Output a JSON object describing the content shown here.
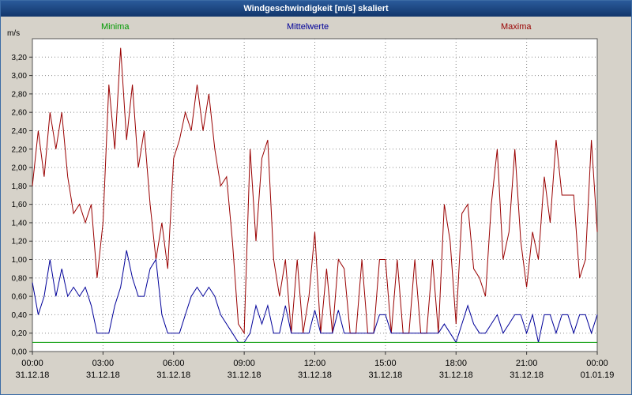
{
  "window": {
    "title": "Windgeschwindigkeit [m/s] skaliert"
  },
  "colors": {
    "title_bar": "#12366b",
    "background": "#d6d2c9",
    "frame_border": "#3b6ba5",
    "grid": "#8a8a8a",
    "minima": "#009900",
    "mittelwerte": "#000099",
    "maxima": "#990000"
  },
  "chart_data": {
    "type": "line",
    "title": "Windgeschwindigkeit [m/s] skaliert",
    "xlabel": "",
    "ylabel": "m/s",
    "ylim": [
      0,
      3.4
    ],
    "y_tick_step": 0.2,
    "y_ticks": [
      "0,00",
      "0,20",
      "0,40",
      "0,60",
      "0,80",
      "1,00",
      "1,20",
      "1,40",
      "1,60",
      "1,80",
      "2,00",
      "2,20",
      "2,40",
      "2,60",
      "2,80",
      "3,00",
      "3,20"
    ],
    "grid": "dotted",
    "legend_position": "top",
    "x_interval_minutes": 15,
    "x_ticks": [
      {
        "time": "00:00",
        "date": "31.12.18"
      },
      {
        "time": "03:00",
        "date": "31.12.18"
      },
      {
        "time": "06:00",
        "date": "31.12.18"
      },
      {
        "time": "09:00",
        "date": "31.12.18"
      },
      {
        "time": "12:00",
        "date": "31.12.18"
      },
      {
        "time": "15:00",
        "date": "31.12.18"
      },
      {
        "time": "18:00",
        "date": "31.12.18"
      },
      {
        "time": "21:00",
        "date": "31.12.18"
      },
      {
        "time": "00:00",
        "date": "01.01.19"
      }
    ],
    "series": [
      {
        "name": "Maxima",
        "color": "#990000",
        "values": [
          1.8,
          2.4,
          1.9,
          2.6,
          2.2,
          2.6,
          1.9,
          1.5,
          1.6,
          1.4,
          1.6,
          0.8,
          1.4,
          2.9,
          2.2,
          3.3,
          2.3,
          2.9,
          2.0,
          2.4,
          1.6,
          1.0,
          1.4,
          0.9,
          2.1,
          2.3,
          2.6,
          2.4,
          2.9,
          2.4,
          2.8,
          2.2,
          1.8,
          1.9,
          1.2,
          0.3,
          0.2,
          2.2,
          1.2,
          2.1,
          2.3,
          1.0,
          0.6,
          1.0,
          0.2,
          1.0,
          0.2,
          0.6,
          1.3,
          0.2,
          0.9,
          0.2,
          1.0,
          0.9,
          0.2,
          0.2,
          1.0,
          0.2,
          0.2,
          1.0,
          1.0,
          0.2,
          1.0,
          0.2,
          0.2,
          1.0,
          0.2,
          0.2,
          1.0,
          0.2,
          1.6,
          1.2,
          0.3,
          1.5,
          1.6,
          0.9,
          0.8,
          0.6,
          1.6,
          2.2,
          1.0,
          1.3,
          2.2,
          1.2,
          0.7,
          1.3,
          1.0,
          1.9,
          1.4,
          2.3,
          1.7,
          1.7,
          1.7,
          0.8,
          1.0,
          2.3,
          1.3
        ]
      },
      {
        "name": "Mittelwerte",
        "color": "#000099",
        "values": [
          0.75,
          0.4,
          0.6,
          1.0,
          0.6,
          0.9,
          0.6,
          0.7,
          0.6,
          0.7,
          0.5,
          0.2,
          0.2,
          0.2,
          0.5,
          0.7,
          1.1,
          0.8,
          0.6,
          0.6,
          0.9,
          1.0,
          0.4,
          0.2,
          0.2,
          0.2,
          0.4,
          0.6,
          0.7,
          0.6,
          0.7,
          0.6,
          0.4,
          0.3,
          0.2,
          0.1,
          0.1,
          0.2,
          0.5,
          0.3,
          0.5,
          0.2,
          0.2,
          0.5,
          0.2,
          0.2,
          0.2,
          0.2,
          0.45,
          0.2,
          0.2,
          0.2,
          0.45,
          0.2,
          0.2,
          0.2,
          0.2,
          0.2,
          0.2,
          0.4,
          0.4,
          0.2,
          0.2,
          0.2,
          0.2,
          0.2,
          0.2,
          0.2,
          0.2,
          0.2,
          0.3,
          0.2,
          0.1,
          0.3,
          0.5,
          0.3,
          0.2,
          0.2,
          0.3,
          0.4,
          0.2,
          0.3,
          0.4,
          0.4,
          0.2,
          0.4,
          0.1,
          0.4,
          0.4,
          0.2,
          0.4,
          0.4,
          0.2,
          0.4,
          0.4,
          0.2,
          0.4
        ]
      },
      {
        "name": "Minima",
        "color": "#009900",
        "values": [
          0.1,
          0.1,
          0.1,
          0.1,
          0.1,
          0.1,
          0.1,
          0.1,
          0.1,
          0.1,
          0.1,
          0.1,
          0.1,
          0.1,
          0.1,
          0.1,
          0.1,
          0.1,
          0.1,
          0.1,
          0.1,
          0.1,
          0.1,
          0.1,
          0.1,
          0.1,
          0.1,
          0.1,
          0.1,
          0.1,
          0.1,
          0.1,
          0.1,
          0.1,
          0.1,
          0.1,
          0.1,
          0.1,
          0.1,
          0.1,
          0.1,
          0.1,
          0.1,
          0.1,
          0.1,
          0.1,
          0.1,
          0.1,
          0.1,
          0.1,
          0.1,
          0.1,
          0.1,
          0.1,
          0.1,
          0.1,
          0.1,
          0.1,
          0.1,
          0.1,
          0.1,
          0.1,
          0.1,
          0.1,
          0.1,
          0.1,
          0.1,
          0.1,
          0.1,
          0.1,
          0.1,
          0.1,
          0.1,
          0.1,
          0.1,
          0.1,
          0.1,
          0.1,
          0.1,
          0.1,
          0.1,
          0.1,
          0.1,
          0.1,
          0.1,
          0.1,
          0.1,
          0.1,
          0.1,
          0.1,
          0.1,
          0.1,
          0.1,
          0.1,
          0.1,
          0.1,
          0.1
        ]
      }
    ]
  }
}
